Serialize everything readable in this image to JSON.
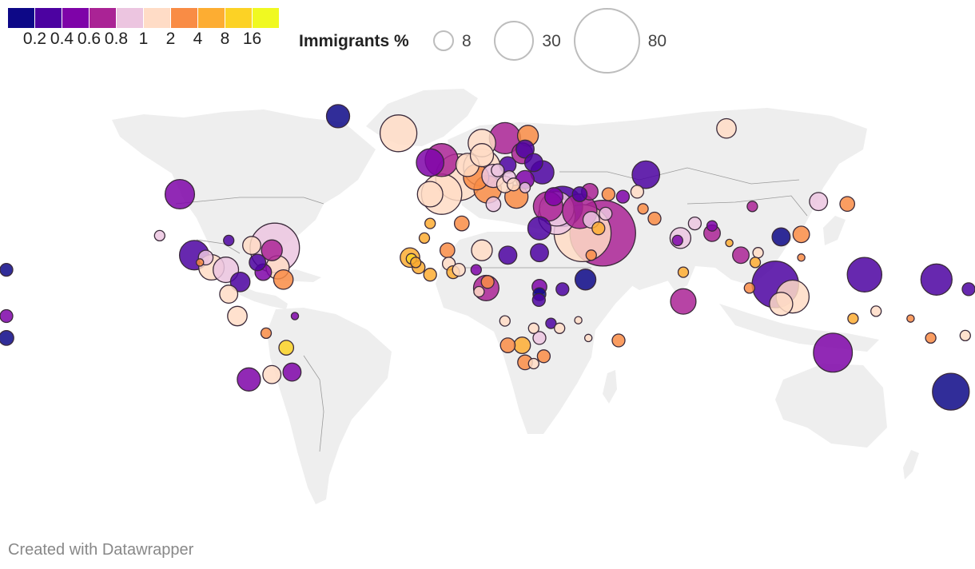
{
  "legend": {
    "colors": [
      "#0d0887",
      "#4c02a1",
      "#7e03a8",
      "#aa2395",
      "#ecc5e0",
      "#ffdcc6",
      "#f98c45",
      "#fdad32",
      "#fcd225",
      "#f0f921"
    ],
    "tick_labels": [
      "0.2",
      "0.4",
      "0.6",
      "0.8",
      "1",
      "2",
      "4",
      "8",
      "16"
    ],
    "size_title": "Immigrants %",
    "size_values": [
      "8",
      "30",
      "80"
    ]
  },
  "credit": "Created with Datawrapper",
  "chart_data": {
    "type": "bubble-map",
    "color_scale": {
      "breaks": [
        0.2,
        0.4,
        0.6,
        0.8,
        1,
        2,
        4,
        8,
        16
      ]
    },
    "size_scale": {
      "legend_values": [
        8,
        30,
        80
      ]
    },
    "bubbles": [
      {
        "lon": -95,
        "lat": 40,
        "size": 16,
        "color": "#7e03a8"
      },
      {
        "lon": -40,
        "lat": 72,
        "size": 10,
        "color": "#0d0887"
      },
      {
        "lon": -19,
        "lat": 65,
        "size": 25,
        "color": "#ffdcc6"
      },
      {
        "lon": -102,
        "lat": 23,
        "size": 2,
        "color": "#ecc5e0"
      },
      {
        "lon": -90,
        "lat": 15,
        "size": 16,
        "color": "#4c02a1"
      },
      {
        "lon": -86,
        "lat": 14,
        "size": 4,
        "color": "#ecc5e0"
      },
      {
        "lon": -78,
        "lat": 21,
        "size": 2,
        "color": "#4c02a1"
      },
      {
        "lon": -70,
        "lat": 19,
        "size": 6,
        "color": "#ffdcc6"
      },
      {
        "lon": -62,
        "lat": 18,
        "size": 45,
        "color": "#ecc5e0"
      },
      {
        "lon": -63,
        "lat": 17,
        "size": 8,
        "color": "#aa2395"
      },
      {
        "lon": -84,
        "lat": 10,
        "size": 12,
        "color": "#ffdcc6"
      },
      {
        "lon": -79,
        "lat": 9,
        "size": 12,
        "color": "#ecc5e0"
      },
      {
        "lon": -88,
        "lat": 12,
        "size": 1,
        "color": "#f98c45"
      },
      {
        "lon": -61,
        "lat": 10,
        "size": 10,
        "color": "#ffdcc6"
      },
      {
        "lon": -66,
        "lat": 8,
        "size": 5,
        "color": "#7e03a8"
      },
      {
        "lon": -68,
        "lat": 12,
        "size": 5,
        "color": "#4c02a1"
      },
      {
        "lon": -59,
        "lat": 5,
        "size": 7,
        "color": "#f98c45"
      },
      {
        "lon": -74,
        "lat": 4,
        "size": 7,
        "color": "#4c02a1"
      },
      {
        "lon": -78,
        "lat": -1,
        "size": 6,
        "color": "#ffdcc6"
      },
      {
        "lon": -75,
        "lat": -10,
        "size": 7,
        "color": "#ffdcc6"
      },
      {
        "lon": -55,
        "lat": -10,
        "size": 1,
        "color": "#7e03a8"
      },
      {
        "lon": -65,
        "lat": -17,
        "size": 2,
        "color": "#f98c45"
      },
      {
        "lon": -58,
        "lat": -23,
        "size": 4,
        "color": "#fcd225"
      },
      {
        "lon": -63,
        "lat": -34,
        "size": 6,
        "color": "#ffdcc6"
      },
      {
        "lon": -56,
        "lat": -33,
        "size": 6,
        "color": "#7e03a8"
      },
      {
        "lon": -71,
        "lat": -36,
        "size": 10,
        "color": "#7e03a8"
      },
      {
        "lon": -4,
        "lat": 54,
        "size": 20,
        "color": "#aa2395"
      },
      {
        "lon": -8,
        "lat": 53,
        "size": 14,
        "color": "#7e03a8"
      },
      {
        "lon": 2,
        "lat": 47,
        "size": 40,
        "color": "#ffdcc6"
      },
      {
        "lon": -4,
        "lat": 40,
        "size": 30,
        "color": "#ffdcc6"
      },
      {
        "lon": -8,
        "lat": 40,
        "size": 12,
        "color": "#ffdcc6"
      },
      {
        "lon": 10,
        "lat": 51,
        "size": 25,
        "color": "#ffdcc6"
      },
      {
        "lon": 5,
        "lat": 52,
        "size": 10,
        "color": "#ffdcc6"
      },
      {
        "lon": 8,
        "lat": 47,
        "size": 12,
        "color": "#f98c45"
      },
      {
        "lon": 14,
        "lat": 47.5,
        "size": 10,
        "color": "#ecc5e0"
      },
      {
        "lon": 12,
        "lat": 42,
        "size": 14,
        "color": "#f98c45"
      },
      {
        "lon": 18,
        "lat": 63,
        "size": 18,
        "color": "#aa2395"
      },
      {
        "lon": 10,
        "lat": 61,
        "size": 14,
        "color": "#ffdcc6"
      },
      {
        "lon": 10,
        "lat": 56,
        "size": 10,
        "color": "#ffdcc6"
      },
      {
        "lon": 26,
        "lat": 64,
        "size": 8,
        "color": "#f98c45"
      },
      {
        "lon": 25,
        "lat": 58.5,
        "size": 6,
        "color": "#4c02a1"
      },
      {
        "lon": 24,
        "lat": 56.8,
        "size": 8,
        "color": "#aa2395"
      },
      {
        "lon": 19,
        "lat": 52,
        "size": 5,
        "color": "#4c02a1"
      },
      {
        "lon": 15.5,
        "lat": 49.8,
        "size": 3,
        "color": "#ecc5e0"
      },
      {
        "lon": 19.5,
        "lat": 47,
        "size": 3,
        "color": "#ecc5e0"
      },
      {
        "lon": 25,
        "lat": 46,
        "size": 6,
        "color": "#7e03a8"
      },
      {
        "lon": 28,
        "lat": 53,
        "size": 6,
        "color": "#4c02a1"
      },
      {
        "lon": 31,
        "lat": 49,
        "size": 10,
        "color": "#4c02a1"
      },
      {
        "lon": 21,
        "lat": 44,
        "size": 3,
        "color": "#ffdcc6"
      },
      {
        "lon": 25,
        "lat": 42.7,
        "size": 2,
        "color": "#ecc5e0"
      },
      {
        "lon": 22,
        "lat": 39,
        "size": 10,
        "color": "#f98c45"
      },
      {
        "lon": 18,
        "lat": 44,
        "size": 5,
        "color": "#ffdcc6"
      },
      {
        "lon": 14,
        "lat": 35.9,
        "size": 4,
        "color": "#ecc5e0"
      },
      {
        "lon": 35,
        "lat": 39,
        "size": 6,
        "color": "#7e03a8"
      },
      {
        "lon": 33,
        "lat": 35,
        "size": 16,
        "color": "#aa2395"
      },
      {
        "lon": 36,
        "lat": 34,
        "size": 22,
        "color": "#ecc5e0"
      },
      {
        "lon": 38,
        "lat": 35,
        "size": 30,
        "color": "#4c02a1"
      },
      {
        "lon": 36,
        "lat": 31,
        "size": 25,
        "color": "#ecc5e0"
      },
      {
        "lon": 30,
        "lat": 26,
        "size": 10,
        "color": "#4c02a1"
      },
      {
        "lon": 44,
        "lat": 33,
        "size": 22,
        "color": "#aa2395"
      },
      {
        "lon": 45,
        "lat": 24,
        "size": 60,
        "color": "#ffdcc6"
      },
      {
        "lon": 52,
        "lat": 24,
        "size": 80,
        "color": "#aa2395"
      },
      {
        "lon": 48,
        "lat": 29.5,
        "size": 5,
        "color": "#ecc5e0"
      },
      {
        "lon": 50.5,
        "lat": 26,
        "size": 3,
        "color": "#fdad32"
      },
      {
        "lon": 47.5,
        "lat": 41,
        "size": 5,
        "color": "#aa2395"
      },
      {
        "lon": 44,
        "lat": 40,
        "size": 4,
        "color": "#4c02a1"
      },
      {
        "lon": 54,
        "lat": 40,
        "size": 3,
        "color": "#f98c45"
      },
      {
        "lon": 48,
        "lat": 15,
        "size": 2,
        "color": "#f98c45"
      },
      {
        "lon": 67,
        "lat": 48,
        "size": 14,
        "color": "#4c02a1"
      },
      {
        "lon": 64,
        "lat": 41,
        "size": 3,
        "color": "#ffdcc6"
      },
      {
        "lon": 59,
        "lat": 39,
        "size": 3,
        "color": "#7e03a8"
      },
      {
        "lon": 53,
        "lat": 32,
        "size": 3,
        "color": "#ecc5e0"
      },
      {
        "lon": 66,
        "lat": 34,
        "size": 2,
        "color": "#f98c45"
      },
      {
        "lon": 70,
        "lat": 30,
        "size": 3,
        "color": "#f98c45"
      },
      {
        "lon": 79,
        "lat": 22,
        "size": 8,
        "color": "#ecc5e0"
      },
      {
        "lon": 78,
        "lat": 21,
        "size": 2,
        "color": "#7e03a8"
      },
      {
        "lon": 90,
        "lat": 24,
        "size": 5,
        "color": "#aa2395"
      },
      {
        "lon": 84,
        "lat": 28,
        "size": 3,
        "color": "#ecc5e0"
      },
      {
        "lon": 80,
        "lat": 8,
        "size": 2,
        "color": "#fdad32"
      },
      {
        "lon": 90,
        "lat": 27,
        "size": 2,
        "color": "#7e03a8"
      },
      {
        "lon": 104,
        "lat": 35,
        "size": 2,
        "color": "#aa2395"
      },
      {
        "lon": 100,
        "lat": 15,
        "size": 5,
        "color": "#aa2395"
      },
      {
        "lon": 106,
        "lat": 16,
        "size": 2,
        "color": "#ffdcc6"
      },
      {
        "lon": 96,
        "lat": 20,
        "size": 1,
        "color": "#fdad32"
      },
      {
        "lon": 105,
        "lat": 12,
        "size": 2,
        "color": "#fdad32"
      },
      {
        "lon": 112,
        "lat": 3,
        "size": 40,
        "color": "#4c02a1"
      },
      {
        "lon": 103,
        "lat": 1.5,
        "size": 2,
        "color": "#f98c45"
      },
      {
        "lon": 118,
        "lat": -2,
        "size": 20,
        "color": "#ffdcc6"
      },
      {
        "lon": 114,
        "lat": -5,
        "size": 10,
        "color": "#ffdcc6"
      },
      {
        "lon": 121,
        "lat": 23.5,
        "size": 5,
        "color": "#f98c45"
      },
      {
        "lon": 114,
        "lat": 22.5,
        "size": 6,
        "color": "#0d0887"
      },
      {
        "lon": 127,
        "lat": 37,
        "size": 6,
        "color": "#ecc5e0"
      },
      {
        "lon": 137,
        "lat": 36,
        "size": 4,
        "color": "#f98c45"
      },
      {
        "lon": 121,
        "lat": 14,
        "size": 1,
        "color": "#f98c45"
      },
      {
        "lon": 95,
        "lat": 67,
        "size": 7,
        "color": "#ffdcc6"
      },
      {
        "lon": 80,
        "lat": -4,
        "size": 12,
        "color": "#aa2395"
      },
      {
        "lon": 132,
        "lat": -25,
        "size": 28,
        "color": "#7e03a8"
      },
      {
        "lon": 173,
        "lat": -41,
        "size": 25,
        "color": "#0d0887"
      },
      {
        "lon": 143,
        "lat": 7,
        "size": 22,
        "color": "#4c02a1"
      },
      {
        "lon": 168,
        "lat": 5,
        "size": 18,
        "color": "#4c02a1"
      },
      {
        "lon": 147,
        "lat": -8,
        "size": 2,
        "color": "#ffdcc6"
      },
      {
        "lon": 139,
        "lat": -11,
        "size": 2,
        "color": "#fdad32"
      },
      {
        "lon": 159,
        "lat": -11,
        "size": 1,
        "color": "#f98c45"
      },
      {
        "lon": 166,
        "lat": -19,
        "size": 2,
        "color": "#f98c45"
      },
      {
        "lon": 178,
        "lat": -18,
        "size": 2,
        "color": "#ffdcc6"
      },
      {
        "lon": 180,
        "lat": 1,
        "size": 3,
        "color": "#4c02a1"
      },
      {
        "lon": -157,
        "lat": 9,
        "size": 3,
        "color": "#0d0887"
      },
      {
        "lon": -172,
        "lat": -10,
        "size": 3,
        "color": "#7e03a8"
      },
      {
        "lon": -172,
        "lat": -19,
        "size": 4,
        "color": "#0d0887"
      },
      {
        "lon": -8,
        "lat": 28,
        "size": 2,
        "color": "#fdad32"
      },
      {
        "lon": -10,
        "lat": 22,
        "size": 2,
        "color": "#fdad32"
      },
      {
        "lon": 3,
        "lat": 28,
        "size": 4,
        "color": "#f98c45"
      },
      {
        "lon": 10,
        "lat": 17,
        "size": 8,
        "color": "#ffdcc6"
      },
      {
        "lon": -2,
        "lat": 17,
        "size": 4,
        "color": "#f98c45"
      },
      {
        "lon": -15,
        "lat": 14,
        "size": 7,
        "color": "#fdad32"
      },
      {
        "lon": -14.5,
        "lat": 13.5,
        "size": 2,
        "color": "#fcd225"
      },
      {
        "lon": -13,
        "lat": 12,
        "size": 2,
        "color": "#fdad32"
      },
      {
        "lon": -12,
        "lat": 10,
        "size": 3,
        "color": "#fdad32"
      },
      {
        "lon": -8,
        "lat": 7,
        "size": 3,
        "color": "#fdad32"
      },
      {
        "lon": -1.5,
        "lat": 11.5,
        "size": 3,
        "color": "#ffdcc6"
      },
      {
        "lon": 0,
        "lat": 8,
        "size": 3,
        "color": "#fdad32"
      },
      {
        "lon": 2,
        "lat": 9,
        "size": 3,
        "color": "#ffdcc6"
      },
      {
        "lon": 8,
        "lat": 9,
        "size": 2,
        "color": "#7e03a8"
      },
      {
        "lon": 19,
        "lat": 15,
        "size": 6,
        "color": "#4c02a1"
      },
      {
        "lon": 30,
        "lat": 16,
        "size": 6,
        "color": "#4c02a1"
      },
      {
        "lon": 12,
        "lat": 4,
        "size": 3,
        "color": "#f98c45"
      },
      {
        "lon": 11.5,
        "lat": 1.5,
        "size": 12,
        "color": "#aa2395"
      },
      {
        "lon": 9,
        "lat": 0,
        "size": 2,
        "color": "#ffdcc6"
      },
      {
        "lon": 30,
        "lat": 2,
        "size": 4,
        "color": "#7e03a8"
      },
      {
        "lon": 30,
        "lat": -1,
        "size": 3,
        "color": "#0d0887"
      },
      {
        "lon": 29.8,
        "lat": -3.4,
        "size": 3,
        "color": "#4c02a1"
      },
      {
        "lon": 38,
        "lat": 1,
        "size": 3,
        "color": "#4c02a1"
      },
      {
        "lon": 46,
        "lat": 5,
        "size": 8,
        "color": "#0d0887"
      },
      {
        "lon": 43.5,
        "lat": -11.7,
        "size": 1,
        "color": "#ffdcc6"
      },
      {
        "lon": 34,
        "lat": -13,
        "size": 2,
        "color": "#4c02a1"
      },
      {
        "lon": 37,
        "lat": -15,
        "size": 2,
        "color": "#ffdcc6"
      },
      {
        "lon": 28,
        "lat": -15,
        "size": 2,
        "color": "#ffdcc6"
      },
      {
        "lon": 18,
        "lat": -12,
        "size": 2,
        "color": "#ffdcc6"
      },
      {
        "lon": 19,
        "lat": -22,
        "size": 4,
        "color": "#f98c45"
      },
      {
        "lon": 24,
        "lat": -22,
        "size": 5,
        "color": "#fdad32"
      },
      {
        "lon": 30,
        "lat": -19,
        "size": 3,
        "color": "#ecc5e0"
      },
      {
        "lon": 31.5,
        "lat": -26.5,
        "size": 3,
        "color": "#f98c45"
      },
      {
        "lon": 25,
        "lat": -29,
        "size": 4,
        "color": "#f98c45"
      },
      {
        "lon": 28,
        "lat": -29.5,
        "size": 2,
        "color": "#ffdcc6"
      },
      {
        "lon": 47,
        "lat": -19,
        "size": 1,
        "color": "#ffdcc6"
      },
      {
        "lon": 57.5,
        "lat": -20,
        "size": 3,
        "color": "#f98c45"
      }
    ]
  }
}
